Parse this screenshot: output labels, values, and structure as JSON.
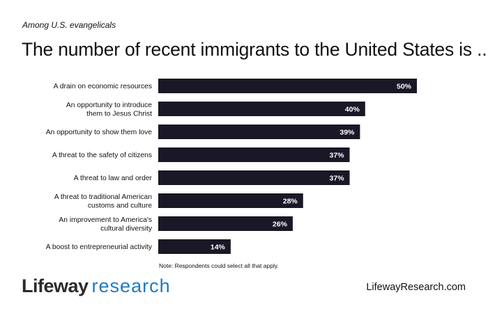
{
  "header": {
    "subtitle": "Among U.S. evangelicals",
    "title": "The number of recent immigrants to the United States is ..."
  },
  "chart_data": {
    "type": "bar",
    "orientation": "horizontal",
    "title": "The number of recent immigrants to the United States is ...",
    "subtitle": "Among U.S. evangelicals",
    "xlabel": "",
    "ylabel": "",
    "xlim": [
      0,
      50
    ],
    "grid": false,
    "bar_color": "#1a1726",
    "value_label_color": "#ffffff",
    "categories": [
      [
        "A drain on economic resources"
      ],
      [
        "An opportunity to introduce",
        "them to Jesus Christ"
      ],
      [
        "An opportunity to show them love"
      ],
      [
        "A threat to the safety of citizens"
      ],
      [
        "A threat to law and order"
      ],
      [
        "A threat to traditional American",
        "customs and culture"
      ],
      [
        "An improvement to America's",
        "cultural diversity"
      ],
      [
        "A boost to entrepreneurial activity"
      ]
    ],
    "values": [
      50,
      40,
      39,
      37,
      37,
      28,
      26,
      14
    ],
    "value_labels": [
      "50%",
      "40%",
      "39%",
      "37%",
      "37%",
      "28%",
      "26%",
      "14%"
    ],
    "note": "Note: Respondents could select all that apply."
  },
  "footer": {
    "logo_part1": "Lifeway",
    "logo_part2": "research",
    "website": "LifewayResearch.com",
    "logo_color_primary": "#2b2b2b",
    "logo_color_accent": "#1f7ac1"
  }
}
